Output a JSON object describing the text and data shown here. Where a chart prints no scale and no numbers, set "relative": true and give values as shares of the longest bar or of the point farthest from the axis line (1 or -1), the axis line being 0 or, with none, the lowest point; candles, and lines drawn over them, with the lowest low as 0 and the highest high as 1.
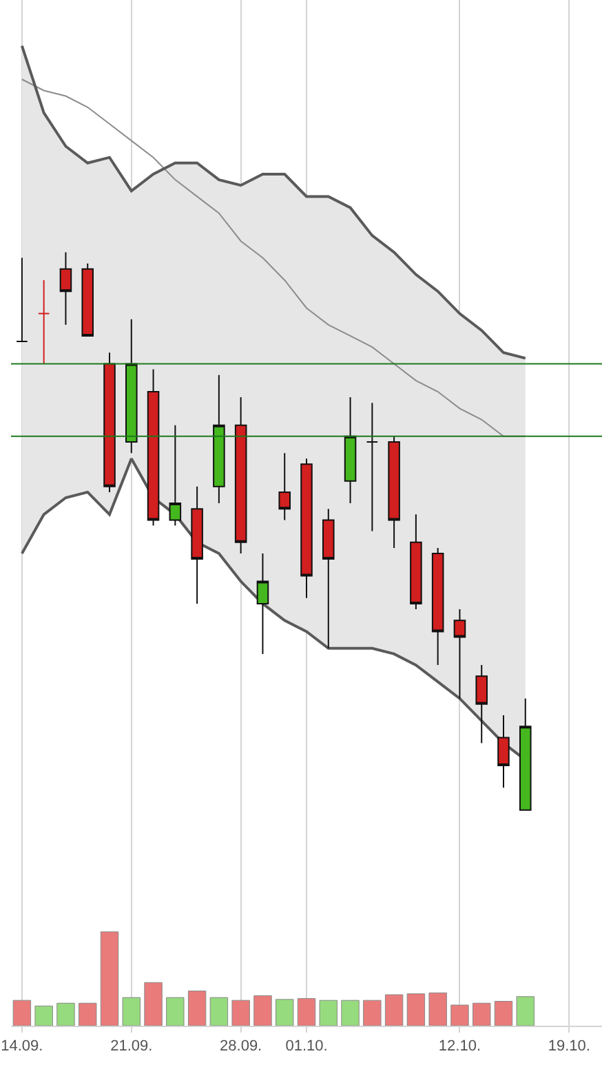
{
  "chart_data": [
    {
      "type": "candlestick",
      "relative": true,
      "grid": "x",
      "tick_labels": false,
      "categories": [
        "14.09.",
        null,
        null,
        null,
        null,
        "21.09.",
        null,
        null,
        null,
        null,
        "28.09.",
        null,
        null,
        "01.10.",
        null,
        null,
        null,
        null,
        null,
        null,
        "12.10.",
        null,
        null,
        null,
        null,
        "19.10.",
        null
      ],
      "ohlc": [
        [
          0.84,
          0.99,
          0.84,
          0.84
        ],
        [
          0.89,
          0.95,
          0.8,
          0.89
        ],
        [
          0.97,
          1.0,
          0.87,
          0.93
        ],
        [
          0.97,
          0.98,
          0.85,
          0.85
        ],
        [
          0.8,
          0.82,
          0.57,
          0.58
        ],
        [
          0.66,
          0.88,
          0.64,
          0.8
        ],
        [
          0.75,
          0.79,
          0.51,
          0.52
        ],
        [
          0.52,
          0.69,
          0.51,
          0.55
        ],
        [
          0.54,
          0.58,
          0.37,
          0.45
        ],
        [
          0.58,
          0.78,
          0.55,
          0.69
        ],
        [
          0.69,
          0.74,
          0.46,
          0.48
        ],
        [
          0.37,
          0.46,
          0.28,
          0.41
        ],
        [
          0.57,
          0.64,
          0.52,
          0.54
        ],
        [
          0.62,
          0.63,
          0.38,
          0.42
        ],
        [
          0.52,
          0.54,
          0.29,
          0.45
        ],
        [
          0.59,
          0.74,
          0.55,
          0.67
        ],
        [
          0.66,
          0.73,
          0.5,
          0.66
        ],
        [
          0.66,
          0.67,
          0.47,
          0.52
        ],
        [
          0.48,
          0.53,
          0.36,
          0.37
        ],
        [
          0.46,
          0.47,
          0.26,
          0.32
        ],
        [
          0.34,
          0.36,
          0.2,
          0.31
        ],
        [
          0.24,
          0.26,
          0.12,
          0.19
        ],
        [
          0.13,
          0.17,
          0.04,
          0.08
        ],
        [
          0.0,
          0.2,
          0.0,
          0.15
        ],
        null,
        null,
        null
      ],
      "colors": [
        "#111111",
        "#d21f1f",
        "#d21f1f",
        "#d21f1f",
        "#d21f1f",
        "#44b81e",
        "#d21f1f",
        "#44b81e",
        "#d21f1f",
        "#44b81e",
        "#d21f1f",
        "#44b81e",
        "#d21f1f",
        "#d21f1f",
        "#d21f1f",
        "#44b81e",
        "#111111",
        "#d21f1f",
        "#d21f1f",
        "#d21f1f",
        "#d21f1f",
        "#d21f1f",
        "#d21f1f",
        "#44b81e",
        null,
        null,
        null
      ],
      "series": [
        {
          "type": "line",
          "color": "#5a5a5a",
          "values": [
            0.46,
            0.53,
            0.56,
            0.57,
            0.53,
            0.63,
            0.56,
            0.53,
            0.48,
            0.46,
            0.41,
            0.37,
            0.34,
            0.32,
            0.29,
            0.29,
            0.29,
            0.28,
            0.26,
            0.23,
            0.2,
            0.16,
            0.12,
            0.09,
            null,
            null,
            null
          ]
        },
        {
          "type": "line",
          "color": "#5a5a5a",
          "values": [
            1.37,
            1.25,
            1.19,
            1.16,
            1.17,
            1.11,
            1.14,
            1.16,
            1.16,
            1.13,
            1.12,
            1.14,
            1.14,
            1.1,
            1.1,
            1.08,
            1.03,
            1.0,
            0.96,
            0.93,
            0.89,
            0.86,
            0.82,
            0.81,
            null,
            null,
            null
          ]
        },
        {
          "type": "line",
          "color": "#8c8c8c",
          "values": [
            1.31,
            1.29,
            1.28,
            1.26,
            1.23,
            1.2,
            1.17,
            1.13,
            1.1,
            1.07,
            1.02,
            0.99,
            0.95,
            0.9,
            0.87,
            0.85,
            0.83,
            0.8,
            0.77,
            0.75,
            0.72,
            0.7,
            0.67,
            0.67,
            null,
            null,
            null
          ],
          "lower": [
            0.46,
            0.53,
            0.56,
            0.57,
            0.53,
            0.63,
            0.56,
            0.53,
            0.48,
            0.46,
            0.41,
            0.37,
            0.34,
            0.32,
            0.29,
            0.29,
            0.29,
            0.28,
            0.26,
            0.23,
            0.2,
            0.16,
            0.12,
            0.09,
            null,
            null,
            null
          ],
          "upper": [
            1.37,
            1.25,
            1.19,
            1.16,
            1.17,
            1.11,
            1.14,
            1.16,
            1.16,
            1.13,
            1.12,
            1.14,
            1.14,
            1.1,
            1.1,
            1.08,
            1.03,
            1.0,
            0.96,
            0.93,
            0.89,
            0.86,
            0.82,
            0.81,
            null,
            null,
            null
          ]
        }
      ],
      "ref_lines": [
        {
          "axis": "y",
          "value": 0.8,
          "color": "#1d7a1d"
        },
        {
          "axis": "y",
          "value": 0.67,
          "color": "#1d7a1d"
        }
      ]
    },
    {
      "type": "bar",
      "relative": true,
      "grid": "x",
      "categories": [
        "14.09.",
        null,
        null,
        null,
        null,
        "21.09.",
        null,
        null,
        null,
        null,
        "28.09.",
        null,
        null,
        "01.10.",
        null,
        null,
        null,
        null,
        null,
        null,
        "12.10.",
        null,
        null,
        null,
        null,
        "19.10.",
        null
      ],
      "values": [
        0.27,
        0.21,
        0.24,
        0.24,
        1.0,
        0.3,
        0.46,
        0.3,
        0.37,
        0.3,
        0.27,
        0.32,
        0.28,
        0.29,
        0.27,
        0.27,
        0.27,
        0.33,
        0.34,
        0.35,
        0.22,
        0.24,
        0.26,
        0.31,
        null,
        null,
        null
      ],
      "colors": [
        "#ea7b7b",
        "#96db7e",
        "#96db7e",
        "#ea7b7b",
        "#ea7b7b",
        "#96db7e",
        "#ea7b7b",
        "#96db7e",
        "#ea7b7b",
        "#96db7e",
        "#ea7b7b",
        "#ea7b7b",
        "#96db7e",
        "#ea7b7b",
        "#96db7e",
        "#96db7e",
        "#ea7b7b",
        "#ea7b7b",
        "#ea7b7b",
        "#ea7b7b",
        "#ea7b7b",
        "#ea7b7b",
        "#ea7b7b",
        "#96db7e",
        "#ea7b7b",
        "#ea7b7b",
        "#ea7b7b"
      ]
    }
  ]
}
